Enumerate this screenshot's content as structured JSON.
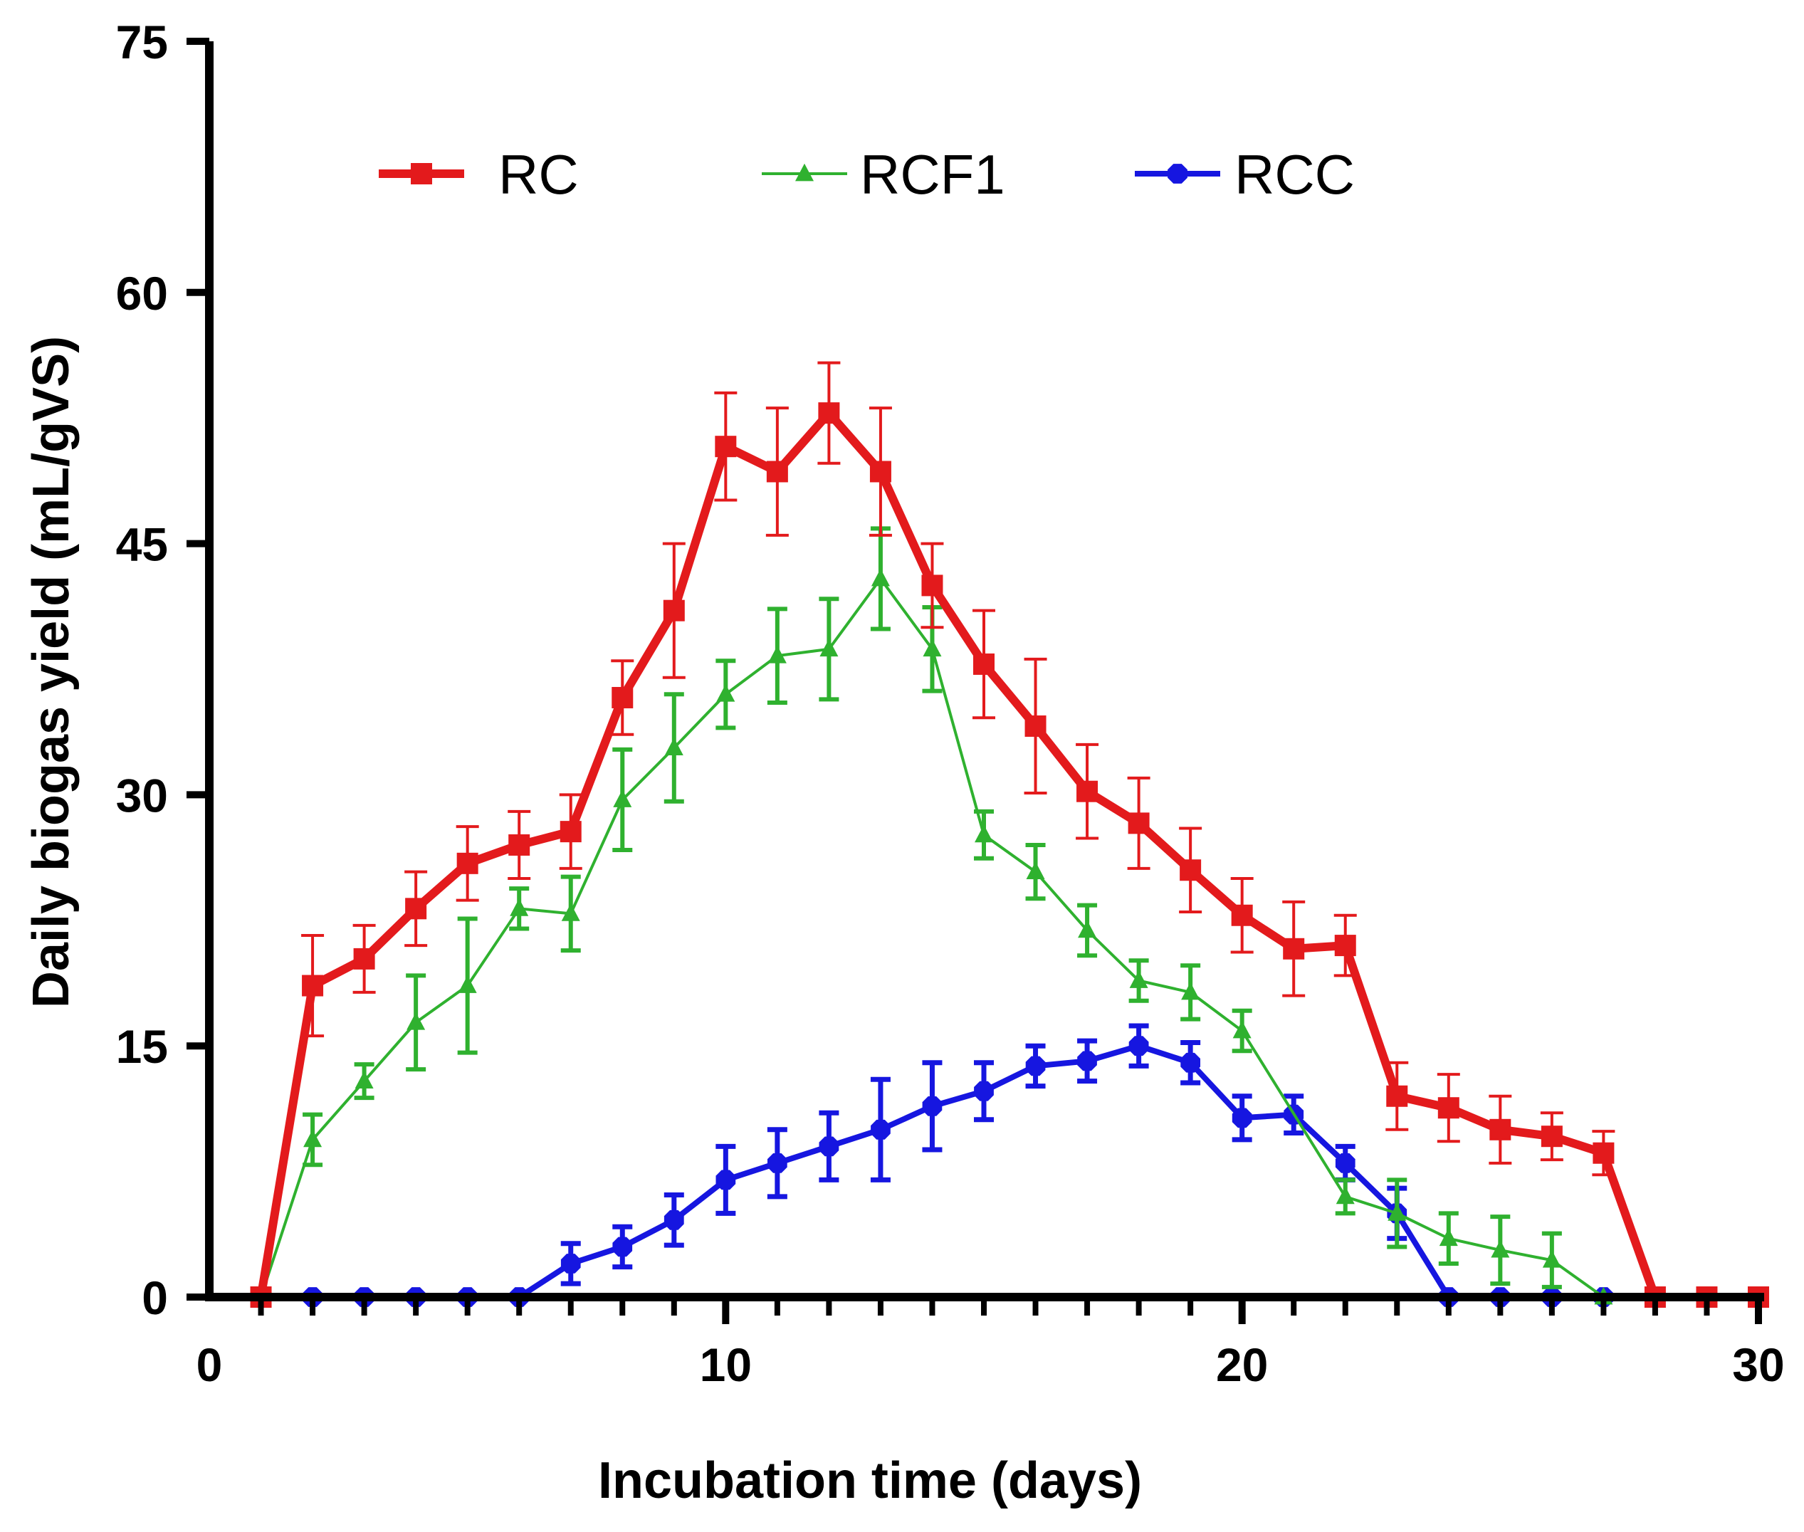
{
  "chart_data": {
    "type": "line",
    "title": "",
    "xlabel": "Incubation time (days)",
    "ylabel": "Daily biogas yield (mL/gVS)",
    "xlim": [
      0,
      30
    ],
    "ylim": [
      0,
      75
    ],
    "xticks": [
      0,
      10,
      20,
      30
    ],
    "yticks": [
      0,
      15,
      30,
      45,
      60,
      75
    ],
    "xtick_labels": [
      "0",
      "10",
      "20",
      "30"
    ],
    "ytick_labels": [
      "0",
      "15",
      "30",
      "45",
      "60",
      "75"
    ],
    "grid": false,
    "legend_position": "top",
    "x": [
      1,
      2,
      3,
      4,
      5,
      6,
      7,
      8,
      9,
      10,
      11,
      12,
      13,
      14,
      15,
      16,
      17,
      18,
      19,
      20,
      21,
      22,
      23,
      24,
      25,
      26,
      27,
      28,
      29,
      30
    ],
    "series": [
      {
        "name": "RC",
        "color": "#e31a1c",
        "marker": "square",
        "values": [
          0,
          18.6,
          20.2,
          23.2,
          25.9,
          27.0,
          27.8,
          35.8,
          41.0,
          50.8,
          49.3,
          52.8,
          49.3,
          42.5,
          37.8,
          34.1,
          30.2,
          28.3,
          25.5,
          22.8,
          20.8,
          21.0,
          12.0,
          11.3,
          10.0,
          9.6,
          8.6,
          0,
          0,
          0
        ],
        "errors": [
          0,
          3.0,
          2.0,
          2.2,
          2.2,
          2.0,
          2.2,
          2.2,
          4.0,
          3.2,
          3.8,
          3.0,
          3.8,
          2.5,
          3.2,
          4.0,
          2.8,
          2.7,
          2.5,
          2.2,
          2.8,
          1.8,
          2.0,
          2.0,
          2.0,
          1.4,
          1.3,
          0,
          0,
          0
        ]
      },
      {
        "name": "RCF1",
        "color": "#2fb12f",
        "marker": "triangle",
        "values": [
          0,
          9.4,
          12.9,
          16.4,
          18.6,
          23.2,
          22.9,
          29.7,
          32.8,
          36.0,
          38.3,
          38.7,
          42.9,
          38.7,
          27.6,
          25.4,
          21.9,
          18.9,
          18.2,
          15.9,
          null,
          6.0,
          5.0,
          3.5,
          2.8,
          2.2,
          0,
          0,
          0,
          0
        ],
        "errors": [
          0,
          1.5,
          1.0,
          2.8,
          4.0,
          1.2,
          2.2,
          3.0,
          3.2,
          2.0,
          2.8,
          3.0,
          3.0,
          2.5,
          1.4,
          1.6,
          1.5,
          1.2,
          1.6,
          1.2,
          null,
          1.0,
          2.0,
          1.5,
          2.0,
          1.6,
          0,
          0,
          0,
          0
        ]
      },
      {
        "name": "RCC",
        "color": "#1616e0",
        "marker": "circle",
        "values": [
          0,
          0,
          0,
          0,
          0,
          0,
          2.0,
          3.0,
          4.6,
          7.0,
          8.0,
          9.0,
          10.0,
          11.4,
          12.3,
          13.8,
          14.1,
          15.0,
          14.0,
          10.7,
          10.9,
          8.0,
          5.0,
          0,
          0,
          0,
          0,
          0,
          0,
          0
        ],
        "errors": [
          0,
          0,
          0,
          0,
          0,
          0,
          1.2,
          1.2,
          1.5,
          2.0,
          2.0,
          2.0,
          3.0,
          2.6,
          1.7,
          1.2,
          1.2,
          1.2,
          1.2,
          1.3,
          1.1,
          1.0,
          1.5,
          0,
          0,
          0,
          0,
          0,
          0,
          0
        ]
      }
    ]
  }
}
